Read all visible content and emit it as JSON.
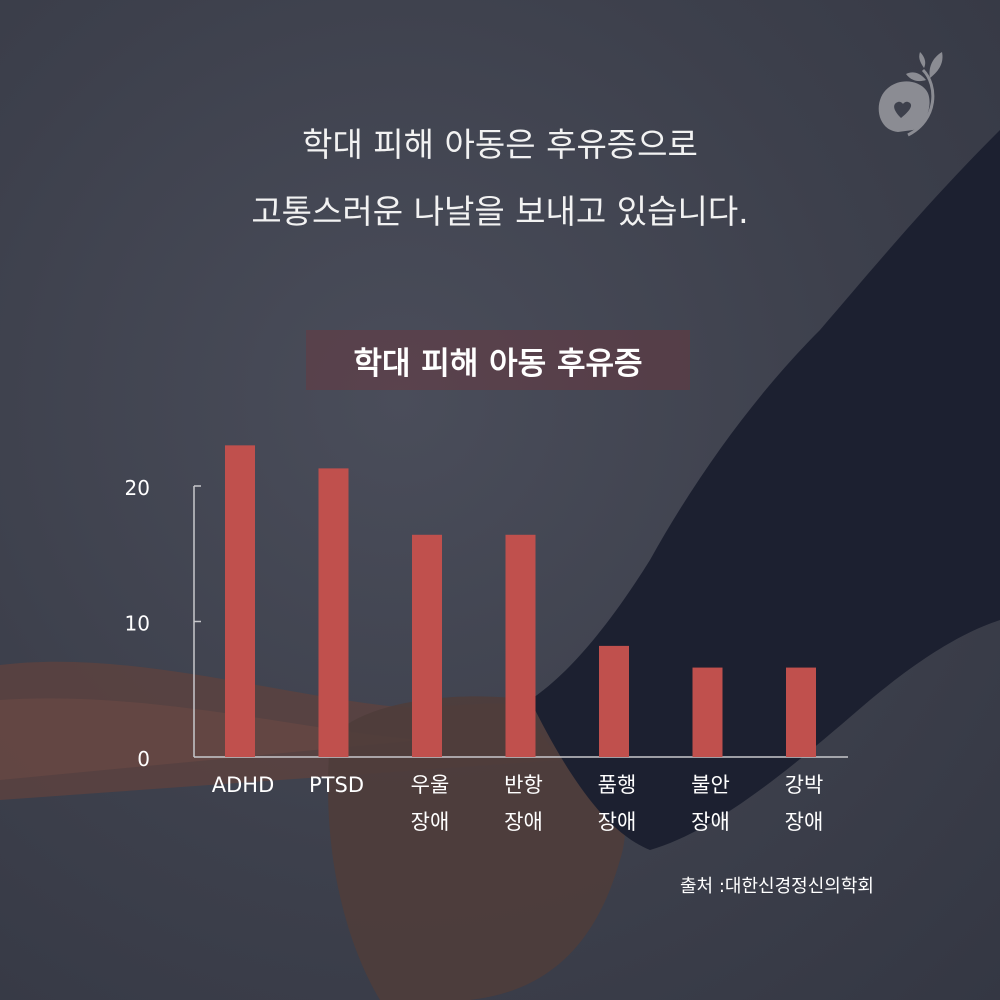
{
  "headline": {
    "line1": "학대 피해 아동은 후유증으로",
    "line2": "고통스러운 나날을 보내고 있습니다."
  },
  "colors": {
    "bar": "#c0504d",
    "background": "#3d404c",
    "sleeve": "#1c2030"
  },
  "logo_icon": "heart-stone-sprout-icon",
  "chart_data": {
    "type": "bar",
    "title": "학대 피해 아동 후유증",
    "categories": [
      {
        "line1": "ADHD",
        "line2": ""
      },
      {
        "line1": "PTSD",
        "line2": ""
      },
      {
        "line1": "우울",
        "line2": "장애"
      },
      {
        "line1": "반항",
        "line2": "장애"
      },
      {
        "line1": "품행",
        "line2": "장애"
      },
      {
        "line1": "불안",
        "line2": "장애"
      },
      {
        "line1": "강박",
        "line2": "장애"
      }
    ],
    "values": [
      23.0,
      21.3,
      16.4,
      16.4,
      8.2,
      6.6,
      6.6
    ],
    "yticks": [
      "0",
      "10",
      "20"
    ],
    "ylim": [
      0,
      20
    ],
    "grid": false,
    "xlabel": "",
    "ylabel": ""
  },
  "source": "출처 :대한신경정신의학회"
}
